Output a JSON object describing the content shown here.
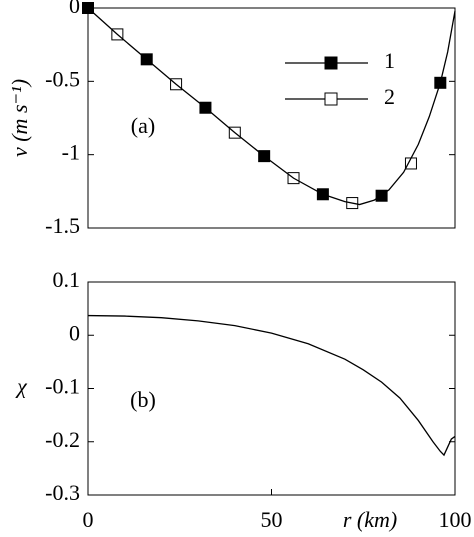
{
  "chart_data": [
    {
      "type": "line",
      "ylabel": "v (m s⁻¹)",
      "panel_label": "(a)",
      "xlim": [
        0,
        100
      ],
      "ylim": [
        -1.5,
        0
      ],
      "yticks": [
        0,
        -0.5,
        -1,
        -1.5
      ],
      "legend": "upper right",
      "series": [
        {
          "name": "1",
          "color": "#000000",
          "marker": "square",
          "marker_fill": "#000000",
          "x": [
            0,
            16,
            32,
            48,
            64,
            80,
            96
          ],
          "values": [
            0,
            -0.35,
            -0.68,
            -1.01,
            -1.27,
            -1.28,
            -0.51
          ]
        },
        {
          "name": "2",
          "color": "#000000",
          "marker": "square",
          "marker_fill": "#ffffff",
          "x": [
            8,
            24,
            40,
            56,
            72,
            88
          ],
          "values": [
            -0.18,
            -0.52,
            -0.85,
            -1.16,
            -1.33,
            -1.06
          ]
        },
        {
          "color": "#000000",
          "marker": "none",
          "x": [
            0,
            8,
            16,
            24,
            32,
            40,
            48,
            56,
            64,
            70,
            74,
            78,
            82,
            86,
            90,
            93,
            96,
            98,
            100
          ],
          "values": [
            0,
            -0.18,
            -0.35,
            -0.52,
            -0.68,
            -0.85,
            -1.01,
            -1.16,
            -1.27,
            -1.32,
            -1.34,
            -1.31,
            -1.24,
            -1.12,
            -0.93,
            -0.74,
            -0.51,
            -0.3,
            -0.02
          ]
        }
      ]
    },
    {
      "type": "line",
      "ylabel": "χ",
      "panel_label": "(b)",
      "xlabel": "r (km)",
      "xlim": [
        0,
        100
      ],
      "xticks": [
        0,
        50,
        100
      ],
      "ylim": [
        -0.3,
        0.1
      ],
      "yticks": [
        0.1,
        0,
        -0.1,
        -0.2,
        -0.3
      ],
      "series": [
        {
          "color": "#000000",
          "marker": "none",
          "x": [
            0,
            10,
            20,
            30,
            40,
            50,
            60,
            70,
            75,
            80,
            85,
            90,
            94,
            96,
            97,
            98,
            99,
            100
          ],
          "values": [
            0.037,
            0.036,
            0.033,
            0.027,
            0.018,
            0.004,
            -0.016,
            -0.045,
            -0.065,
            -0.088,
            -0.118,
            -0.16,
            -0.2,
            -0.218,
            -0.225,
            -0.21,
            -0.195,
            -0.19
          ]
        }
      ]
    }
  ]
}
